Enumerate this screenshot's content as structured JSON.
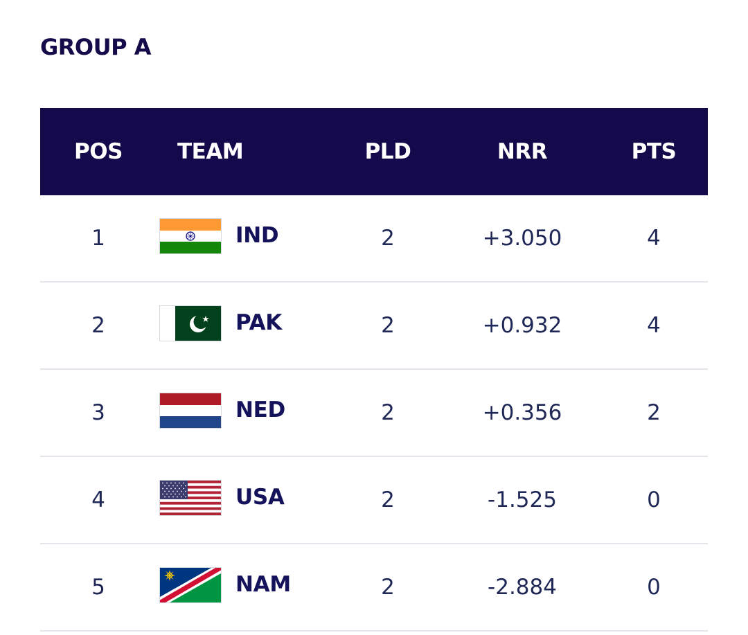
{
  "group": {
    "title": "GROUP A"
  },
  "columns": {
    "pos": "POS",
    "team": "TEAM",
    "pld": "PLD",
    "nrr": "NRR",
    "pts": "PTS"
  },
  "colors": {
    "header_bg": "#14094a",
    "title": "#150a4a",
    "team_code": "#14125a",
    "row_divider": "#e4e5ea"
  },
  "rows": [
    {
      "pos": "1",
      "team": "IND",
      "flag": "india-flag-icon",
      "pld": "2",
      "nrr": "+3.050",
      "pts": "4"
    },
    {
      "pos": "2",
      "team": "PAK",
      "flag": "pakistan-flag-icon",
      "pld": "2",
      "nrr": "+0.932",
      "pts": "4"
    },
    {
      "pos": "3",
      "team": "NED",
      "flag": "netherlands-flag-icon",
      "pld": "2",
      "nrr": "+0.356",
      "pts": "2"
    },
    {
      "pos": "4",
      "team": "USA",
      "flag": "usa-flag-icon",
      "pld": "2",
      "nrr": "-1.525",
      "pts": "0"
    },
    {
      "pos": "5",
      "team": "NAM",
      "flag": "namibia-flag-icon",
      "pld": "2",
      "nrr": "-2.884",
      "pts": "0"
    }
  ]
}
